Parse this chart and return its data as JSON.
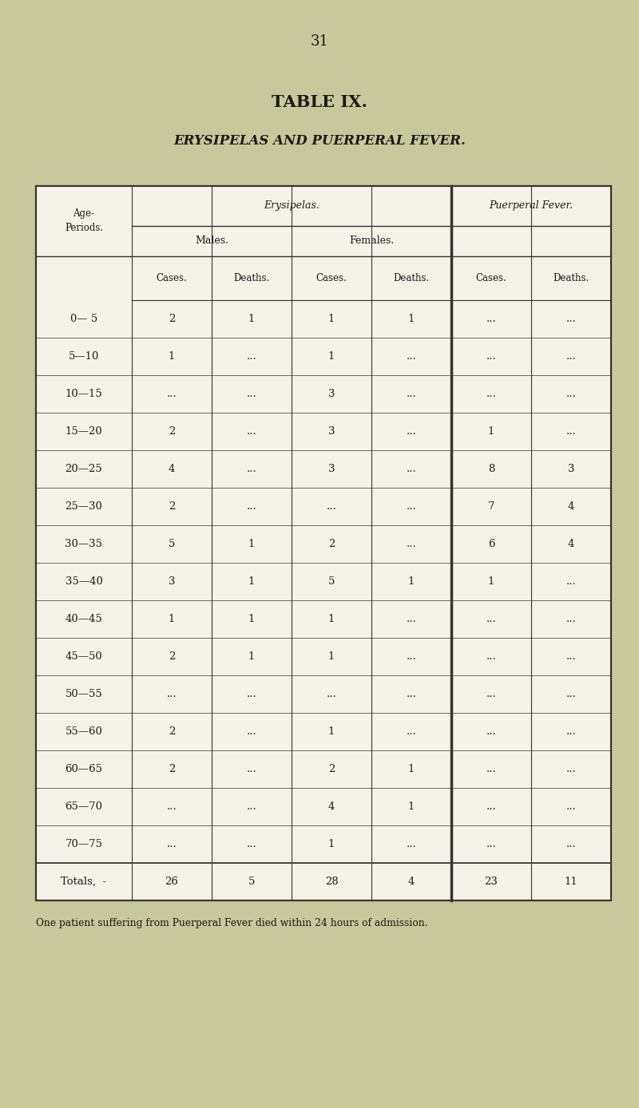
{
  "page_number": "31",
  "title": "TABLE IX.",
  "subtitle": "ERYSIPELAS AND PUERPERAL FEVER.",
  "background_color": "#c8c89a",
  "header1": "Erysipelas.",
  "header2": "Puerperal Fever.",
  "subheader_males": "Males.",
  "subheader_females": "Females.",
  "age_periods": [
    "0— 5",
    "5—10",
    "10—15",
    "15—20",
    "20—25",
    "25—30",
    "30—35",
    "35—40",
    "40—45",
    "45—50",
    "50—55",
    "55—60",
    "60—65",
    "65—70",
    "70—75",
    "Totals,  -"
  ],
  "male_cases": [
    "2",
    "1",
    "...",
    "2",
    "4",
    "2",
    "5",
    "3",
    "1",
    "2",
    "...",
    "2",
    "2",
    "...",
    "...",
    "26"
  ],
  "male_deaths": [
    "1",
    "...",
    "...",
    "...",
    "...",
    "...",
    "1",
    "1",
    "1",
    "1",
    "...",
    "...",
    "...",
    "...",
    "...",
    "5"
  ],
  "female_cases": [
    "1",
    "1",
    "3",
    "3",
    "3",
    "...",
    "2",
    "5",
    "1",
    "1",
    "...",
    "1",
    "2",
    "4",
    "1",
    "28"
  ],
  "female_deaths": [
    "1",
    "...",
    "...",
    "...",
    "...",
    "...",
    "...",
    "1",
    "...",
    "...",
    "...",
    "...",
    "1",
    "1",
    "...",
    "4"
  ],
  "pf_cases": [
    "...",
    "...",
    "...",
    "1",
    "8",
    "7",
    "6",
    "1",
    "...",
    "...",
    "...",
    "...",
    "...",
    "...",
    "...",
    "23"
  ],
  "pf_deaths": [
    "...",
    "...",
    "...",
    "...",
    "3",
    "4",
    "4",
    "...",
    "...",
    "...",
    "...",
    "...",
    "...",
    "...",
    "...",
    "11"
  ],
  "footnote": "One patient suffering from Puerperal Fever died within 24 hours of admission.",
  "table_color": "#f5f2e8",
  "line_color": "#333333",
  "text_color": "#1a1a1a"
}
